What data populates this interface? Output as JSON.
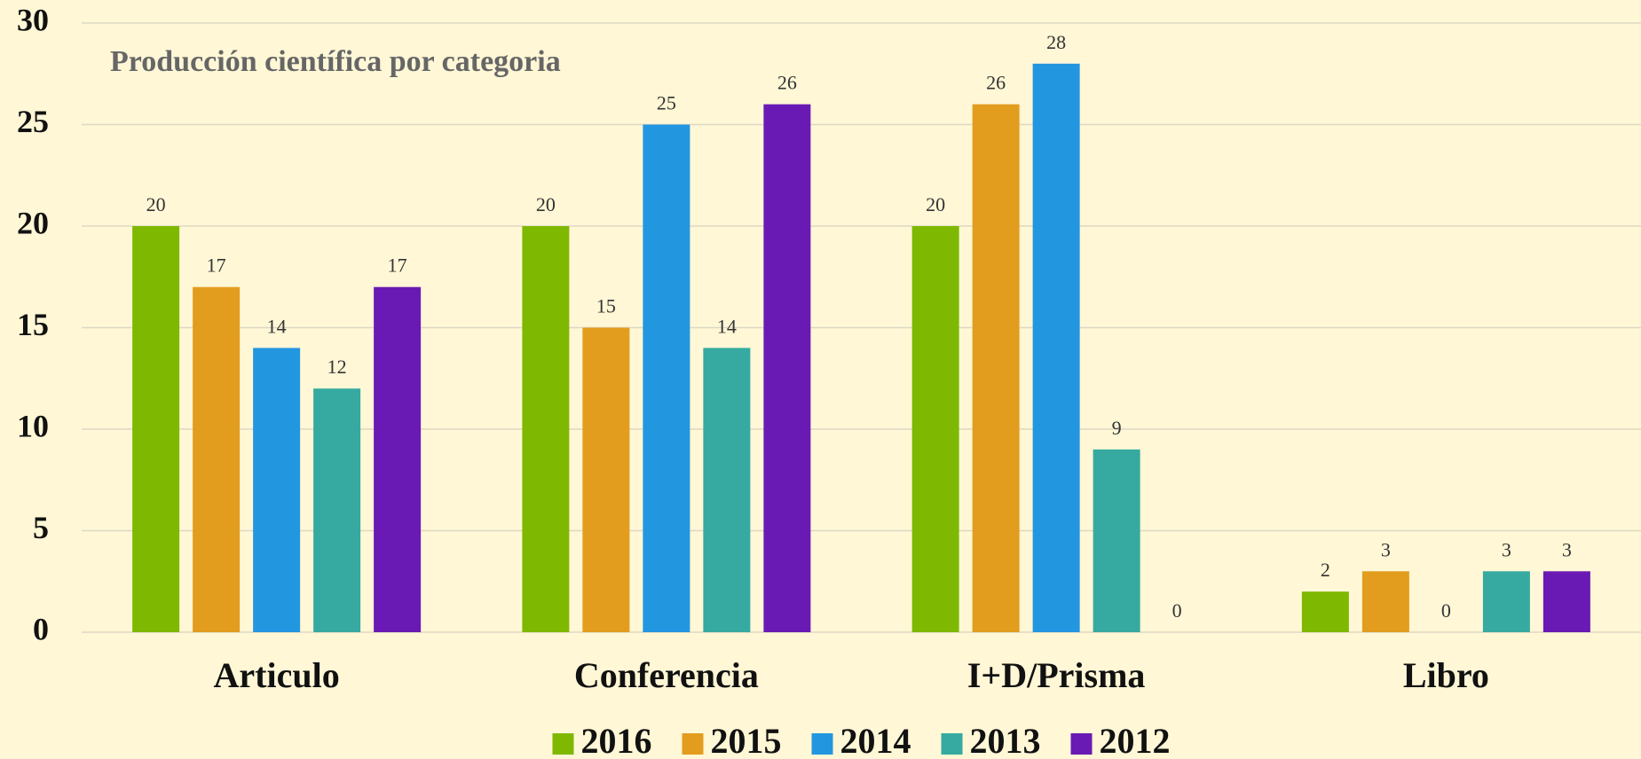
{
  "chart_data": {
    "type": "bar",
    "title": "Producción científica por categoria",
    "categories": [
      "Articulo",
      "Conferencia",
      "I+D/Prisma",
      "Libro"
    ],
    "series": [
      {
        "name": "2016",
        "color": "#7fb800",
        "values": [
          20,
          20,
          20,
          2
        ]
      },
      {
        "name": "2015",
        "color": "#e29d1e",
        "values": [
          17,
          15,
          26,
          3
        ]
      },
      {
        "name": "2014",
        "color": "#2396e0",
        "values": [
          14,
          25,
          28,
          0
        ]
      },
      {
        "name": "2013",
        "color": "#36aaa0",
        "values": [
          12,
          14,
          9,
          3
        ]
      },
      {
        "name": "2012",
        "color": "#6a1ab4",
        "values": [
          17,
          26,
          0,
          3
        ]
      }
    ],
    "ylim": [
      0,
      30
    ],
    "yticks": [
      0,
      5,
      10,
      15,
      20,
      25,
      30
    ],
    "grid": true,
    "legend": "bottom"
  }
}
